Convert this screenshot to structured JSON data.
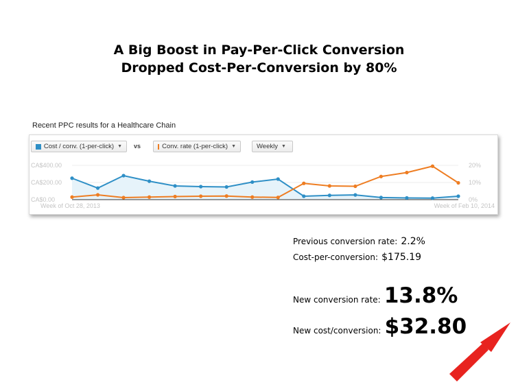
{
  "title_line1": "A Big Boost in Pay-Per-Click Conversion",
  "title_line2": "Dropped Cost-Per-Conversion by 80%",
  "caption": "Recent PPC results for a Healthcare Chain",
  "controls": {
    "metric1": "Cost / conv. (1-per-click)",
    "vs": "vs",
    "metric2": "Conv. rate (1-per-click)",
    "period": "Weekly"
  },
  "colors": {
    "series1": "#2e8fc6",
    "series2": "#ee7d22",
    "area": "#e6f3fa",
    "arrow": "#e8231f"
  },
  "stats": {
    "prev_rate_label": "Previous conversion rate:",
    "prev_rate_value": "2.2%",
    "prev_cost_label": "Cost-per-conversion:",
    "prev_cost_value": "$175.19",
    "new_rate_label": "New conversion rate:",
    "new_rate_value": "13.8%",
    "new_cost_label": "New cost/conversion:",
    "new_cost_value": "$32.80"
  },
  "chart_data": {
    "type": "line",
    "title": "",
    "x_start_label": "Week of Oct 28, 2013",
    "x_end_label": "Week of Feb 10, 2014",
    "y_left_ticks": [
      "CA$400.00",
      "CA$200.00",
      "CA$0.00"
    ],
    "y_left_lim": [
      0,
      400
    ],
    "y_right_ticks": [
      "20%",
      "10%",
      "0%"
    ],
    "y_right_lim": [
      0,
      20
    ],
    "legend": "top",
    "series": [
      {
        "name": "Cost / conv. (1-per-click)",
        "axis": "left",
        "area": true,
        "values": [
          250,
          135,
          280,
          215,
          160,
          152,
          148,
          205,
          240,
          40,
          50,
          55,
          25,
          20,
          18,
          40
        ]
      },
      {
        "name": "Conv. rate (1-per-click)",
        "axis": "right",
        "area": false,
        "values": [
          1.5,
          2.8,
          1.2,
          1.5,
          1.8,
          2.0,
          2.1,
          1.5,
          1.3,
          9.5,
          8.0,
          7.8,
          13.5,
          15.8,
          19.5,
          9.8
        ]
      }
    ]
  }
}
